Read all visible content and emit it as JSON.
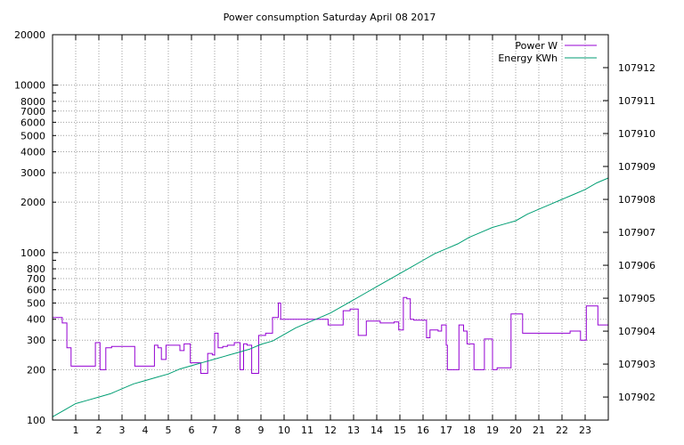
{
  "chart_data": {
    "type": "line",
    "title": "Power consumption Saturday April 08 2017",
    "xlim": [
      0,
      24
    ],
    "x_ticks": [
      "1",
      "2",
      "3",
      "4",
      "5",
      "6",
      "7",
      "8",
      "9",
      "10",
      "11",
      "12",
      "13",
      "14",
      "15",
      "16",
      "17",
      "18",
      "19",
      "20",
      "21",
      "22",
      "23"
    ],
    "y_left": {
      "scale": "log",
      "ylim": [
        100,
        20000
      ],
      "ticks": [
        "100",
        "200",
        "300",
        "400",
        "500",
        "600",
        "700",
        "800",
        "1000",
        "2000",
        "3000",
        "4000",
        "5000",
        "6000",
        "7000",
        "8000",
        "10000",
        "20000"
      ]
    },
    "y_right": {
      "ylim": [
        107901.3,
        107913.0
      ],
      "ticks": [
        "107902",
        "107903",
        "107904",
        "107905",
        "107906",
        "107907",
        "107908",
        "107909",
        "107910",
        "107911",
        "107912"
      ]
    },
    "grid": true,
    "legend": "top-right",
    "series": [
      {
        "name": "Power W",
        "axis": "left",
        "color": "#9400d3",
        "step": true,
        "x": [
          0,
          0.42,
          0.62,
          0.8,
          1.0,
          1.85,
          2.05,
          2.3,
          2.55,
          3.05,
          3.55,
          4.05,
          4.4,
          4.55,
          4.7,
          4.9,
          5.5,
          5.68,
          5.95,
          6.2,
          6.4,
          6.5,
          6.7,
          6.9,
          7.0,
          7.15,
          7.35,
          7.55,
          7.85,
          8.1,
          8.25,
          8.4,
          8.6,
          8.9,
          9.2,
          9.5,
          9.75,
          9.85,
          10.1,
          11.15,
          11.9,
          12.3,
          12.55,
          12.85,
          13.2,
          13.55,
          14.15,
          14.75,
          14.95,
          15.15,
          15.3,
          15.45,
          15.6,
          15.9,
          16.15,
          16.3,
          16.65,
          16.8,
          17.0,
          17.05,
          17.55,
          17.75,
          17.9,
          18.2,
          18.65,
          18.85,
          19.0,
          19.2,
          19.45,
          19.8,
          20.2,
          20.3,
          20.55,
          21.05,
          21.45,
          22.35,
          22.8,
          23.05,
          23.3,
          23.55,
          23.8,
          24.0
        ],
        "y": [
          410,
          380,
          270,
          210,
          210,
          290,
          200,
          270,
          275,
          275,
          210,
          210,
          280,
          270,
          230,
          280,
          260,
          285,
          220,
          220,
          190,
          190,
          250,
          245,
          330,
          270,
          275,
          280,
          290,
          200,
          285,
          280,
          190,
          320,
          330,
          410,
          500,
          400,
          400,
          400,
          370,
          370,
          450,
          460,
          320,
          390,
          380,
          385,
          345,
          540,
          530,
          400,
          395,
          395,
          310,
          345,
          340,
          370,
          280,
          200,
          370,
          340,
          285,
          200,
          305,
          305,
          200,
          205,
          205,
          430,
          430,
          330,
          330,
          330,
          330,
          340,
          300,
          480,
          480,
          370,
          370,
          300
        ]
      },
      {
        "name": "Energy KWh",
        "axis": "right",
        "color": "#009e73",
        "step": false,
        "x": [
          0,
          0.5,
          1.0,
          1.5,
          2.0,
          2.5,
          3.0,
          3.5,
          4.0,
          4.5,
          5.0,
          5.5,
          6.0,
          6.5,
          7.0,
          7.5,
          8.0,
          8.5,
          9.0,
          9.5,
          10.0,
          10.5,
          11.0,
          11.5,
          12.0,
          12.5,
          13.0,
          13.5,
          14.0,
          14.5,
          15.0,
          15.5,
          16.0,
          16.5,
          17.0,
          17.5,
          18.0,
          18.5,
          19.0,
          19.5,
          20.0,
          20.5,
          21.0,
          21.5,
          22.0,
          22.5,
          23.0,
          23.5,
          24.0
        ],
        "y": [
          107901.4,
          107901.6,
          107901.8,
          107901.9,
          107902.0,
          107902.1,
          107902.25,
          107902.4,
          107902.5,
          107902.6,
          107902.7,
          107902.85,
          107902.95,
          107903.05,
          107903.15,
          107903.25,
          107903.35,
          107903.45,
          107903.6,
          107903.7,
          107903.9,
          107904.1,
          107904.25,
          107904.4,
          107904.55,
          107904.75,
          107904.95,
          107905.15,
          107905.35,
          107905.55,
          107905.75,
          107905.95,
          107906.15,
          107906.35,
          107906.5,
          107906.65,
          107906.85,
          107907.0,
          107907.15,
          107907.25,
          107907.35,
          107907.55,
          107907.7,
          107907.85,
          107908.0,
          107908.15,
          107908.3,
          107908.5,
          107908.65
        ]
      }
    ]
  }
}
